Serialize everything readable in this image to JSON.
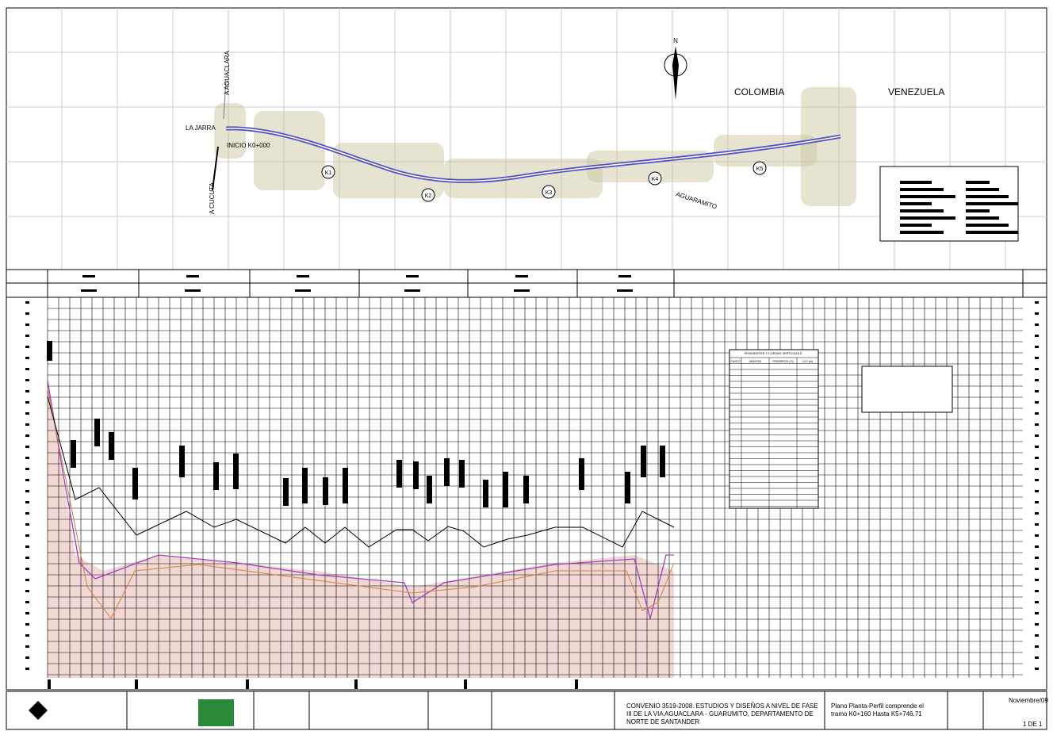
{
  "plan": {
    "labels": {
      "colombia": "COLOMBIA",
      "venezuela": "VENEZUELA",
      "la_jarra": "LA JARRA",
      "inicio": "INICIO K0+000",
      "a_cucuta": "A CUCUTA",
      "a_aguaclara": "A AGUACLARA",
      "aguaramito": "AGUARAMITO",
      "north": "N"
    },
    "markers": [
      "K1",
      "K2",
      "K3",
      "K4",
      "K5"
    ]
  },
  "profile": {
    "table": {
      "title": "PENDIENTES Y CURVAS VERTICALES",
      "columns": [
        "PUNTO",
        "ABSCISA",
        "PENDIENTE (%)",
        "LCV (m)"
      ]
    }
  },
  "title_block": {
    "project": [
      "CONVENIO 3519-2008. ESTUDIOS Y DISEÑOS A NIVEL DE FASE",
      "III DE LA VIA AGUACLARA - GUARUMITO, DEPARTAMENTO DE",
      "NORTE DE SANTANDER"
    ],
    "scope": [
      "Plano Planta-Perfil comprende el",
      "tramo K0+160 Hasta K5+746.71"
    ],
    "date": "Noviembre/09",
    "sheet": "1 DE 1"
  }
}
